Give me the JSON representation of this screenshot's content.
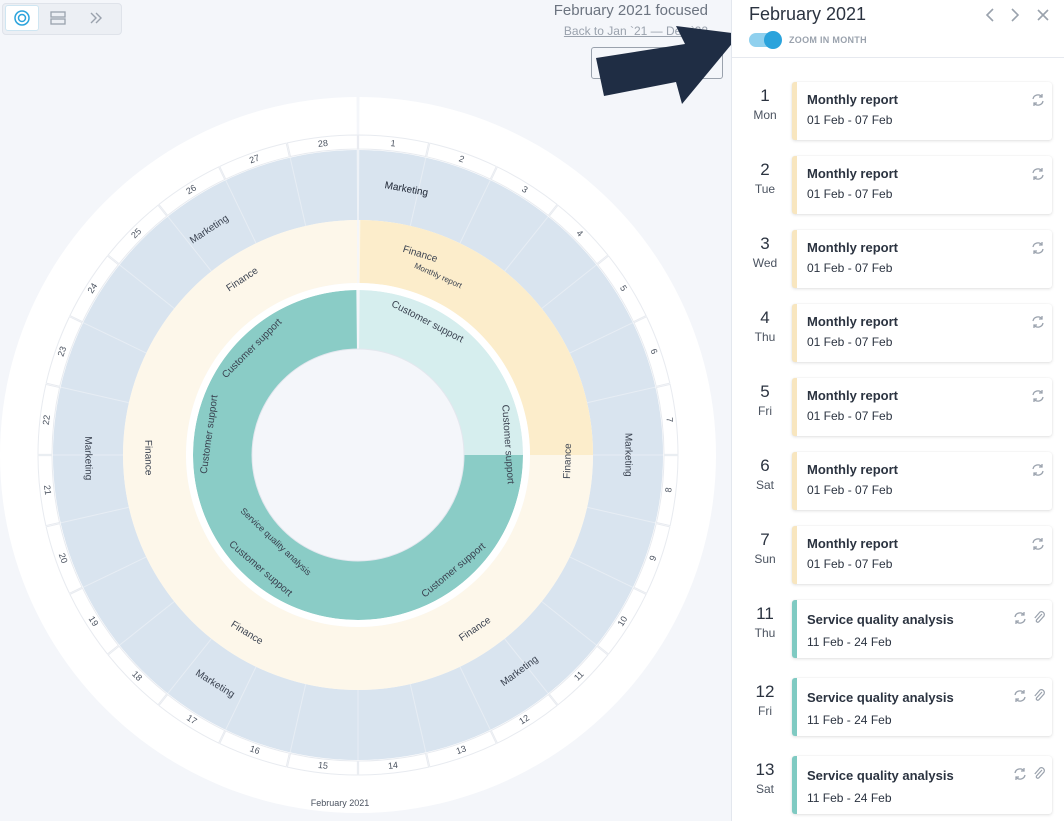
{
  "toolbar": {
    "views": [
      {
        "icon": "radial-view-icon",
        "active": true
      },
      {
        "icon": "list-view-icon",
        "active": false
      },
      {
        "icon": "double-chevron-right-icon",
        "active": false
      }
    ]
  },
  "focus": {
    "title": "February 2021 focused",
    "back_link": "Back to Jan `21 — Dec `22"
  },
  "wheel": {
    "month_label": "February 2021",
    "days": [
      "1",
      "2",
      "3",
      "4",
      "5",
      "6",
      "7",
      "8",
      "9",
      "10",
      "11",
      "12",
      "13",
      "14",
      "15",
      "16",
      "17",
      "18",
      "19",
      "20",
      "21",
      "22",
      "23",
      "24",
      "25",
      "26",
      "27",
      "28"
    ],
    "ring_labels": {
      "marketing": "Marketing",
      "finance": "Finance",
      "customer_support": "Customer support",
      "monthly_report": "Monthly report",
      "service_quality": "Service quality analysis"
    },
    "colors": {
      "marketing": "#d9e4ef",
      "finance": "#fdf7ea",
      "finance_active": "#fcedcb",
      "support": "#ffffff",
      "sqa": "#8accc6",
      "sqa_light": "#d6eeee"
    }
  },
  "sidebar": {
    "title": "February 2021",
    "prev_icon": "chevron-left-icon",
    "next_icon": "chevron-right-icon",
    "close_icon": "close-icon",
    "toggle_label": "ZOOM IN MONTH",
    "toggle_on": true,
    "days": [
      {
        "num": "1",
        "weekday": "Mon",
        "title": "Monthly report",
        "dates": "01 Feb - 07 Feb",
        "type": "report",
        "icons": [
          "recurring-icon"
        ]
      },
      {
        "num": "2",
        "weekday": "Tue",
        "title": "Monthly report",
        "dates": "01 Feb - 07 Feb",
        "type": "report",
        "icons": [
          "recurring-icon"
        ]
      },
      {
        "num": "3",
        "weekday": "Wed",
        "title": "Monthly report",
        "dates": "01 Feb - 07 Feb",
        "type": "report",
        "icons": [
          "recurring-icon"
        ]
      },
      {
        "num": "4",
        "weekday": "Thu",
        "title": "Monthly report",
        "dates": "01 Feb - 07 Feb",
        "type": "report",
        "icons": [
          "recurring-icon"
        ]
      },
      {
        "num": "5",
        "weekday": "Fri",
        "title": "Monthly report",
        "dates": "01 Feb - 07 Feb",
        "type": "report",
        "icons": [
          "recurring-icon"
        ]
      },
      {
        "num": "6",
        "weekday": "Sat",
        "title": "Monthly report",
        "dates": "01 Feb - 07 Feb",
        "type": "report",
        "icons": [
          "recurring-icon"
        ]
      },
      {
        "num": "7",
        "weekday": "Sun",
        "title": "Monthly report",
        "dates": "01 Feb - 07 Feb",
        "type": "report",
        "icons": [
          "recurring-icon"
        ]
      },
      {
        "num": "11",
        "weekday": "Thu",
        "title": "Service quality analysis",
        "dates": "11 Feb - 24 Feb",
        "type": "sqa",
        "icons": [
          "recurring-icon",
          "attachment-icon"
        ]
      },
      {
        "num": "12",
        "weekday": "Fri",
        "title": "Service quality analysis",
        "dates": "11 Feb - 24 Feb",
        "type": "sqa",
        "icons": [
          "recurring-icon",
          "attachment-icon"
        ]
      },
      {
        "num": "13",
        "weekday": "Sat",
        "title": "Service quality analysis",
        "dates": "11 Feb - 24 Feb",
        "type": "sqa",
        "icons": [
          "recurring-icon",
          "attachment-icon"
        ]
      }
    ]
  }
}
